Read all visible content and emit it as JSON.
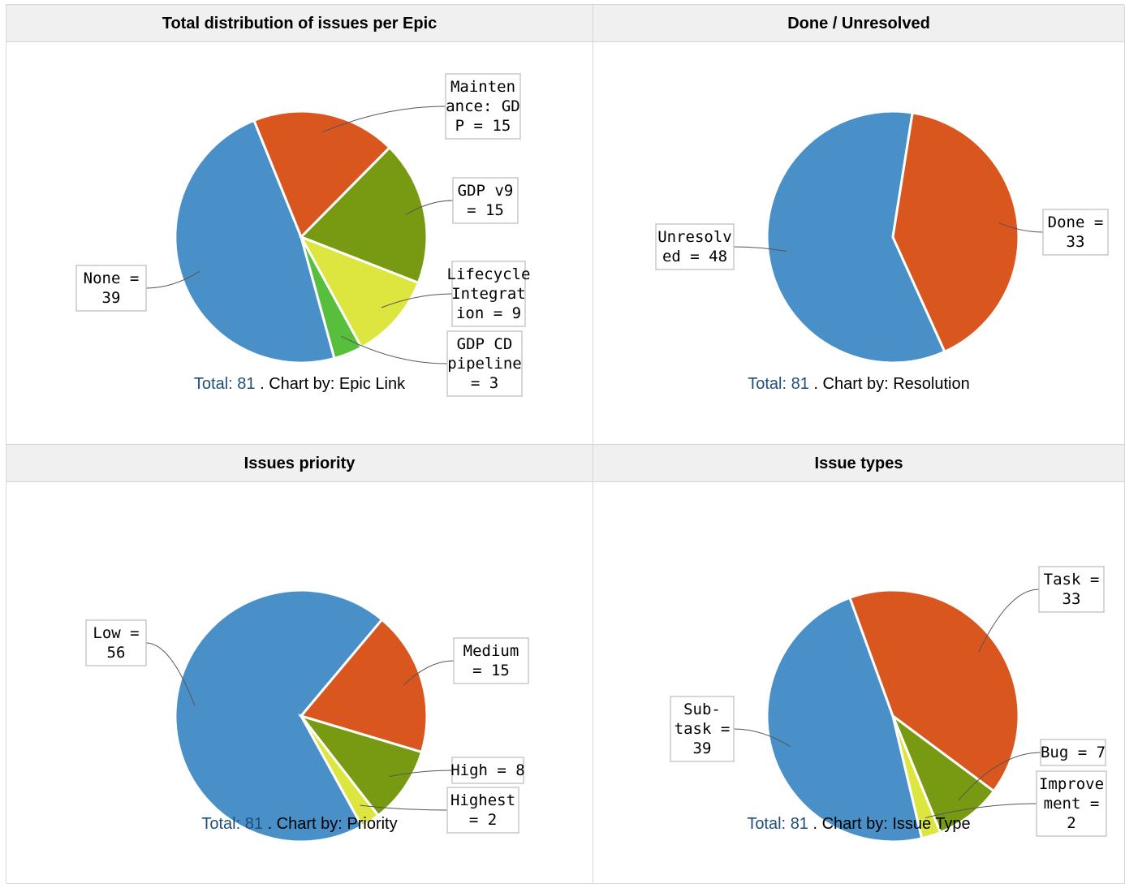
{
  "colors": {
    "blue": "#4a90c8",
    "orange": "#d9571f",
    "green": "#789a12",
    "yellow": "#dce63e",
    "lightgreen": "#58bf3c"
  },
  "panels": [
    {
      "title": "Total distribution of issues per Epic",
      "caption": {
        "total_label": "Total:",
        "total_value": "81",
        "by_text": ". Chart by: Epic Link"
      },
      "chart_data": {
        "type": "pie",
        "title": "Total distribution of issues per Epic",
        "slices": [
          {
            "name": "None",
            "value": 39,
            "color": "blue",
            "label_lines": [
              "None =",
              "39"
            ]
          },
          {
            "name": "Maintenance: GDP",
            "value": 15,
            "color": "orange",
            "label_lines": [
              "Mainten",
              "ance: GD",
              "P = 15"
            ]
          },
          {
            "name": "GDP v9",
            "value": 15,
            "color": "green",
            "label_lines": [
              "GDP v9",
              "= 15"
            ]
          },
          {
            "name": "Lifecycle Integration",
            "value": 9,
            "color": "yellow",
            "label_lines": [
              "Lifecycle",
              "Integrat",
              "ion = 9"
            ]
          },
          {
            "name": "GDP CD pipeline",
            "value": 3,
            "color": "lightgreen",
            "label_lines": [
              "GDP CD",
              "pipeline",
              "= 3"
            ]
          }
        ]
      }
    },
    {
      "title": "Done / Unresolved",
      "caption": {
        "total_label": "Total:",
        "total_value": "81",
        "by_text": ". Chart by: Resolution"
      },
      "chart_data": {
        "type": "pie",
        "title": "Done / Unresolved",
        "slices": [
          {
            "name": "Unresolved",
            "value": 48,
            "color": "blue",
            "label_lines": [
              "Unresolv",
              "ed = 48"
            ]
          },
          {
            "name": "Done",
            "value": 33,
            "color": "orange",
            "label_lines": [
              "Done =",
              "33"
            ]
          }
        ]
      }
    },
    {
      "title": "Issues priority",
      "caption": {
        "total_label": "Total:",
        "total_value": "81",
        "by_text": ". Chart by: Priority"
      },
      "chart_data": {
        "type": "pie",
        "title": "Issues priority",
        "slices": [
          {
            "name": "Low",
            "value": 56,
            "color": "blue",
            "label_lines": [
              "Low =",
              "56"
            ]
          },
          {
            "name": "Medium",
            "value": 15,
            "color": "orange",
            "label_lines": [
              "Medium",
              "= 15"
            ]
          },
          {
            "name": "High",
            "value": 8,
            "color": "green",
            "label_lines": [
              "High = 8"
            ]
          },
          {
            "name": "Highest",
            "value": 2,
            "color": "yellow",
            "label_lines": [
              "Highest",
              "= 2"
            ]
          }
        ]
      }
    },
    {
      "title": "Issue types",
      "caption": {
        "total_label": "Total:",
        "total_value": "81",
        "by_text": ". Chart by: Issue Type"
      },
      "chart_data": {
        "type": "pie",
        "title": "Issue types",
        "slices": [
          {
            "name": "Sub-task",
            "value": 39,
            "color": "blue",
            "label_lines": [
              "Sub-",
              "task =",
              "39"
            ]
          },
          {
            "name": "Task",
            "value": 33,
            "color": "orange",
            "label_lines": [
              "Task =",
              "33"
            ]
          },
          {
            "name": "Bug",
            "value": 7,
            "color": "green",
            "label_lines": [
              "Bug = 7"
            ]
          },
          {
            "name": "Improvement",
            "value": 2,
            "color": "yellow",
            "label_lines": [
              "Improve",
              "ment =",
              "2"
            ]
          }
        ]
      }
    }
  ]
}
